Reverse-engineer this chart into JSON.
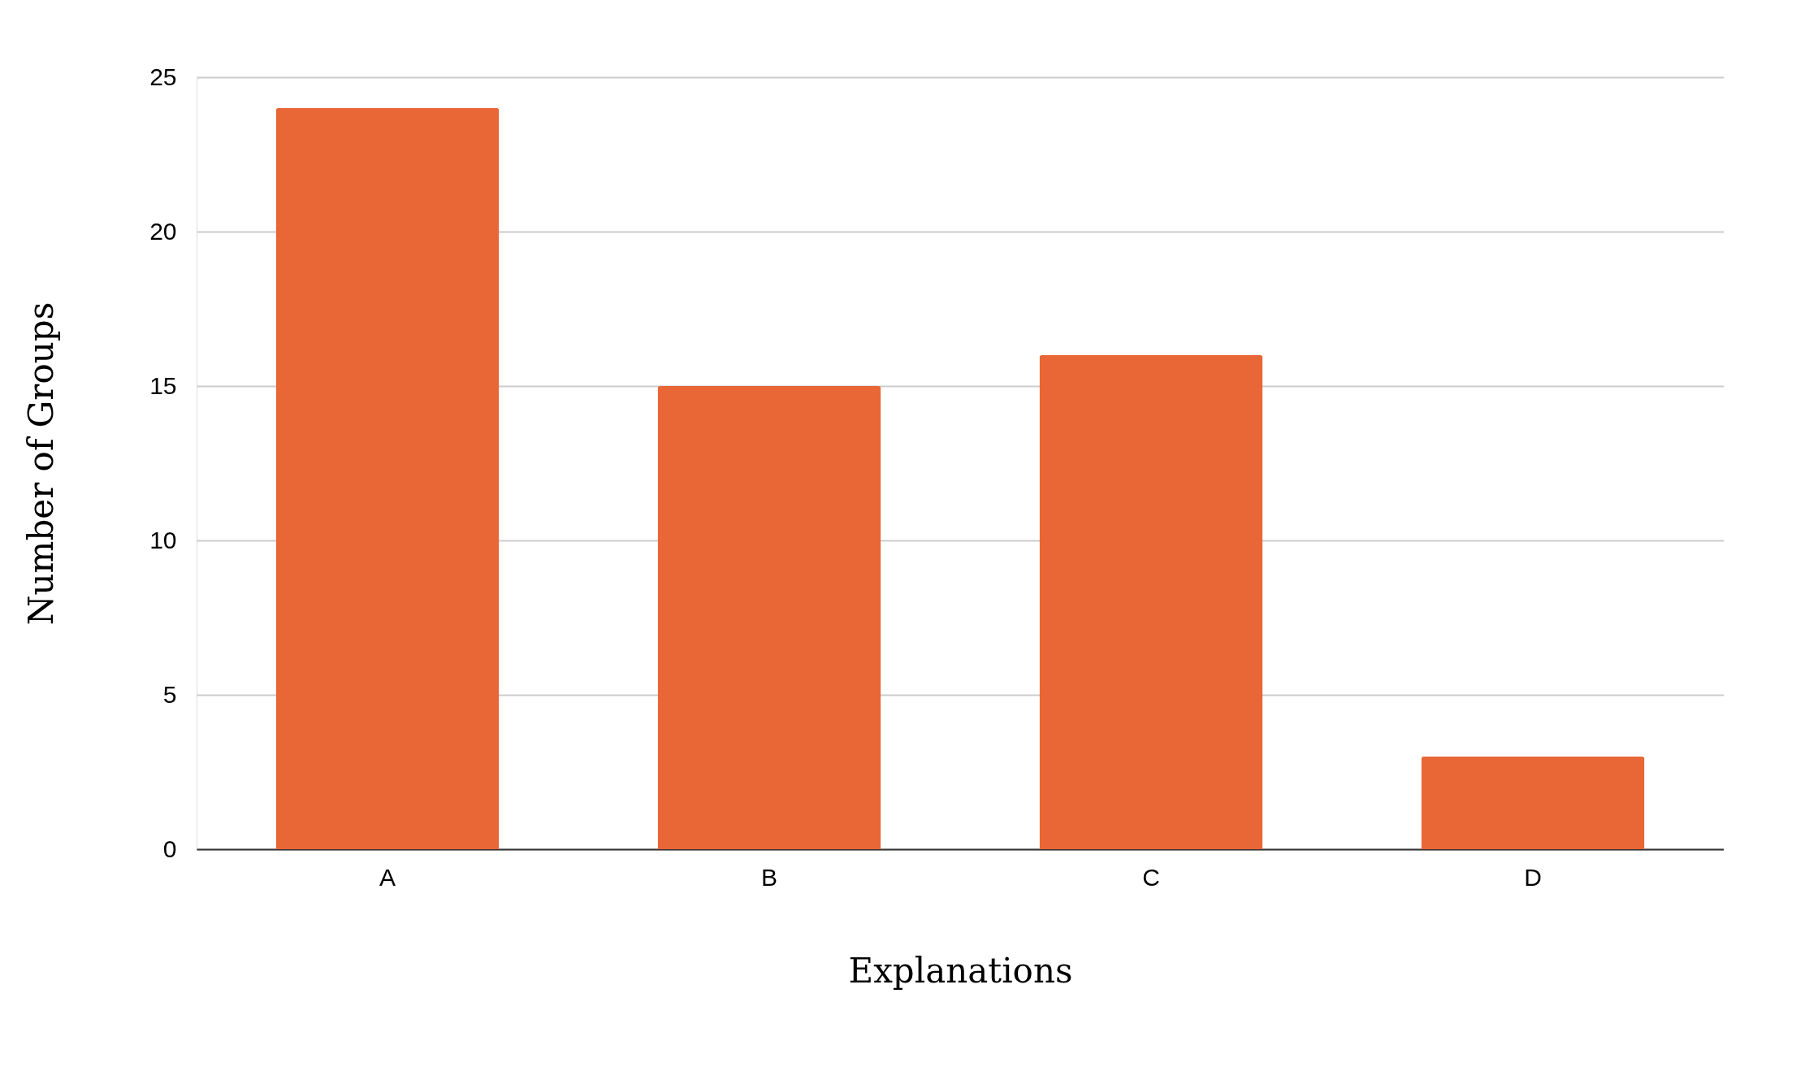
{
  "chart_data": {
    "type": "bar",
    "xlabel": "Explanations",
    "ylabel": "Number of Groups",
    "categories": [
      "A",
      "B",
      "C",
      "D"
    ],
    "values": [
      24,
      15,
      16,
      3
    ],
    "color": "#e96637",
    "ylim": [
      0,
      25
    ],
    "yticks": [
      0,
      5,
      10,
      15,
      20,
      25
    ],
    "grid": "y"
  }
}
